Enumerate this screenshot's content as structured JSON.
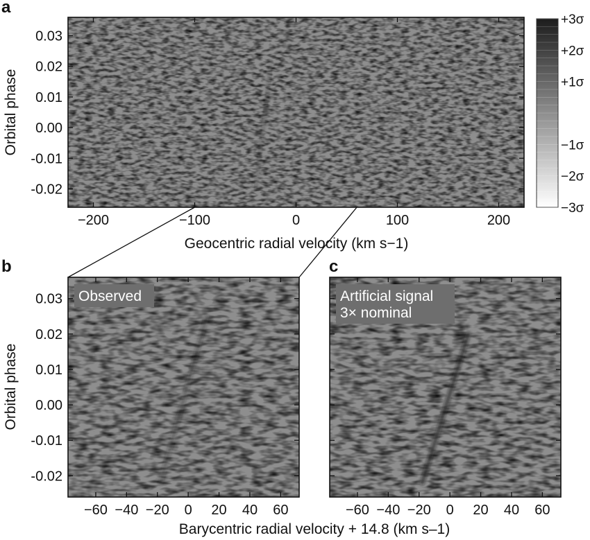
{
  "chart_data": [
    {
      "panel": "a",
      "type": "heatmap",
      "xlabel": "Geocentric radial velocity (km s−1)",
      "ylabel": "Orbital phase",
      "xlim": [
        -225,
        225
      ],
      "ylim": [
        -0.026,
        0.036
      ],
      "xticks": [
        -200,
        -100,
        0,
        100,
        200
      ],
      "yticks": [
        0.03,
        0.02,
        0.01,
        0.0,
        -0.01,
        -0.02
      ],
      "ytick_labels": [
        "0.03",
        "0.02",
        "0.01",
        "0.00",
        "-0.01",
        "-0.02"
      ],
      "signal_trail": {
        "x": [
          -40,
          -25
        ],
        "y": [
          -0.02,
          0.02
        ]
      },
      "colorbar": {
        "labels": [
          "+3σ",
          "+2σ",
          "+1σ",
          "−1σ",
          "−2σ",
          "−3σ"
        ],
        "values": [
          3,
          2,
          1,
          -1,
          -2,
          -3
        ],
        "range": [
          -3,
          3
        ],
        "colors": [
          "#ffffff",
          "#1c1c1c"
        ]
      }
    },
    {
      "panel": "b",
      "type": "heatmap",
      "inset_label": "Observed",
      "ylabel": "Orbital phase",
      "xlim": [
        -78,
        72
      ],
      "ylim": [
        -0.026,
        0.036
      ],
      "xticks": [
        -60,
        -40,
        -20,
        0,
        20,
        40,
        60
      ],
      "yticks": [
        0.03,
        0.02,
        0.01,
        0.0,
        -0.01,
        -0.02
      ],
      "ytick_labels": [
        "0.03",
        "0.02",
        "0.01",
        "0.00",
        "-0.01",
        "-0.02"
      ],
      "signal_trail": {
        "x": [
          -18,
          12
        ],
        "y": [
          -0.022,
          0.025
        ]
      }
    },
    {
      "panel": "c",
      "type": "heatmap",
      "inset_label": [
        "Artificial signal",
        "3× nominal"
      ],
      "xlim": [
        -78,
        72
      ],
      "ylim": [
        -0.026,
        0.036
      ],
      "xticks": [
        -60,
        -40,
        -20,
        0,
        20,
        40,
        60
      ],
      "yticks": [
        0.03,
        0.02,
        0.01,
        0.0,
        -0.01,
        -0.02
      ],
      "signal_trail": {
        "x": [
          -18,
          12
        ],
        "y": [
          -0.022,
          0.02
        ]
      }
    }
  ],
  "shared_xlabel": "Barycentric radial velocity + 14.8 (km s–1)",
  "zoom_range_geocentric": [
    -100,
    60
  ]
}
